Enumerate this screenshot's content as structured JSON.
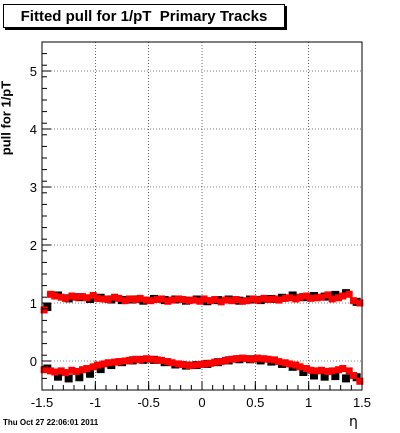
{
  "title": "Fitted pull for 1/pT  Primary Tracks",
  "timestamp": "Thu Oct 27 22:06:01 2011",
  "chart_data": {
    "type": "scatter",
    "xlabel": "η",
    "ylabel": "pull for 1/pT",
    "xlim": [
      -1.5,
      1.5
    ],
    "ylim": [
      -0.5,
      5.5
    ],
    "xticks": [
      -1.5,
      -1,
      -0.5,
      0,
      0.5,
      1,
      1.5
    ],
    "xtick_labels": [
      "-1.5",
      "-1",
      "-0.5",
      "0",
      "0.5",
      "1",
      "1.5"
    ],
    "yticks": [
      0,
      1,
      2,
      3,
      4,
      5
    ],
    "ytick_labels": [
      "0",
      "1",
      "2",
      "3",
      "4",
      "5"
    ],
    "grid": true,
    "series": [
      {
        "color": "#000000",
        "x": [
          -1.45,
          -1.35,
          -1.25,
          -1.15,
          -1.05,
          -0.95,
          -0.85,
          -0.75,
          -0.65,
          -0.55,
          -0.45,
          -0.35,
          -0.25,
          -0.15,
          -0.05,
          0.05,
          0.15,
          0.25,
          0.35,
          0.45,
          0.55,
          0.65,
          0.75,
          0.85,
          0.95,
          1.05,
          1.15,
          1.25,
          1.35,
          1.45
        ],
        "width_values": [
          0.93,
          1.13,
          1.08,
          1.1,
          1.07,
          1.09,
          1.06,
          1.05,
          1.06,
          1.04,
          1.07,
          1.05,
          1.06,
          1.04,
          1.06,
          1.03,
          1.05,
          1.06,
          1.04,
          1.06,
          1.05,
          1.07,
          1.09,
          1.13,
          1.1,
          1.12,
          1.11,
          1.14,
          1.17,
          1.02
        ],
        "mean_values": [
          -0.13,
          -0.27,
          -0.3,
          -0.28,
          -0.22,
          -0.14,
          -0.07,
          -0.02,
          0.01,
          0.02,
          0.02,
          -0.02,
          -0.06,
          -0.08,
          -0.07,
          -0.05,
          -0.02,
          0.01,
          0.03,
          0.03,
          0.01,
          -0.01,
          -0.05,
          -0.1,
          -0.19,
          -0.25,
          -0.27,
          -0.26,
          -0.3,
          -0.28
        ]
      },
      {
        "color": "#ff0000",
        "x": [
          -1.48,
          -1.42,
          -1.38,
          -1.32,
          -1.28,
          -1.22,
          -1.18,
          -1.12,
          -1.08,
          -1.02,
          -0.98,
          -0.92,
          -0.88,
          -0.82,
          -0.78,
          -0.72,
          -0.68,
          -0.62,
          -0.58,
          -0.52,
          -0.48,
          -0.42,
          -0.38,
          -0.32,
          -0.28,
          -0.22,
          -0.18,
          -0.12,
          -0.08,
          -0.02,
          0.02,
          0.08,
          0.12,
          0.18,
          0.22,
          0.28,
          0.32,
          0.38,
          0.42,
          0.48,
          0.52,
          0.58,
          0.62,
          0.68,
          0.72,
          0.78,
          0.82,
          0.88,
          0.92,
          0.98,
          1.02,
          1.08,
          1.12,
          1.18,
          1.22,
          1.28,
          1.32,
          1.38,
          1.42,
          1.48
        ],
        "width_values": [
          0.88,
          1.15,
          1.12,
          1.1,
          1.08,
          1.12,
          1.1,
          1.11,
          1.09,
          1.13,
          1.08,
          1.07,
          1.06,
          1.1,
          1.08,
          1.04,
          1.07,
          1.06,
          1.08,
          1.05,
          1.04,
          1.06,
          1.07,
          1.03,
          1.05,
          1.07,
          1.06,
          1.04,
          1.05,
          1.03,
          1.07,
          1.04,
          1.06,
          1.02,
          1.05,
          1.04,
          1.06,
          1.03,
          1.04,
          1.07,
          1.05,
          1.08,
          1.06,
          1.07,
          1.05,
          1.08,
          1.09,
          1.07,
          1.1,
          1.12,
          1.08,
          1.09,
          1.1,
          1.14,
          1.07,
          1.09,
          1.12,
          1.15,
          1.04,
          1.0
        ],
        "mean_values": [
          -0.15,
          -0.17,
          -0.19,
          -0.17,
          -0.2,
          -0.16,
          -0.18,
          -0.15,
          -0.13,
          -0.1,
          -0.07,
          -0.05,
          -0.03,
          -0.02,
          -0.01,
          0.0,
          0.01,
          0.03,
          0.02,
          0.04,
          0.03,
          0.02,
          0.01,
          -0.01,
          -0.03,
          -0.05,
          -0.06,
          -0.08,
          -0.07,
          -0.06,
          -0.05,
          -0.04,
          -0.02,
          -0.01,
          0.01,
          0.03,
          0.04,
          0.05,
          0.04,
          0.03,
          0.05,
          0.04,
          0.03,
          0.02,
          -0.01,
          -0.03,
          -0.05,
          -0.07,
          -0.1,
          -0.13,
          -0.16,
          -0.17,
          -0.16,
          -0.18,
          -0.17,
          -0.15,
          -0.13,
          -0.17,
          -0.25,
          -0.35
        ]
      }
    ]
  }
}
